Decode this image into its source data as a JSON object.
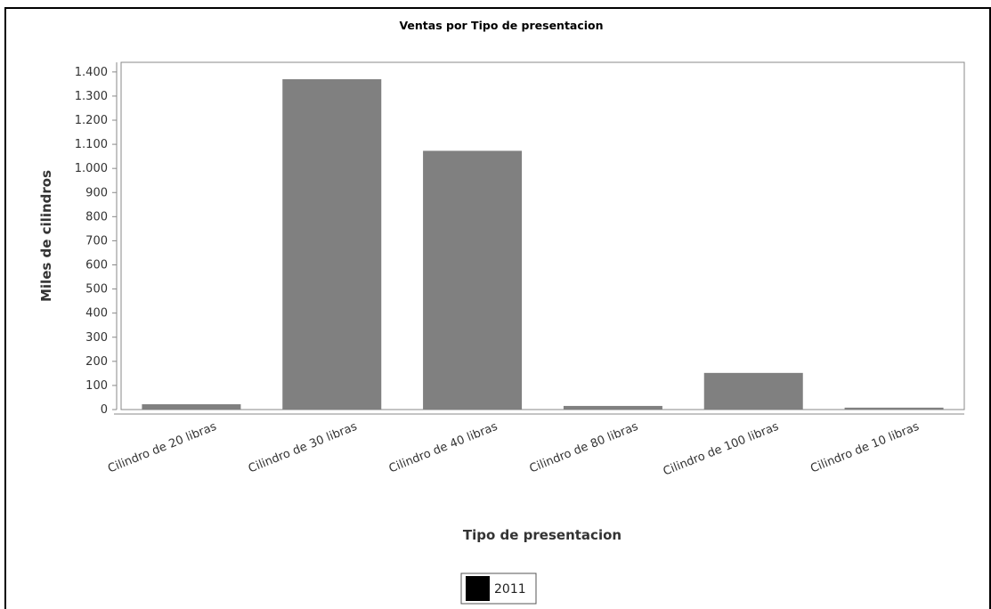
{
  "chart_data": {
    "type": "bar",
    "title": "Ventas por Tipo de presentacion",
    "xlabel": "Tipo de presentacion",
    "ylabel": "Miles de cilindros",
    "categories": [
      "Cilindro de 20 libras",
      "Cilindro de 30 libras",
      "Cilindro de 40 libras",
      "Cilindro de 80 libras",
      "Cilindro de 100 libras",
      "Cilindro de 10 libras"
    ],
    "series": [
      {
        "name": "2011",
        "values": [
          22,
          1370,
          1073,
          15,
          152,
          8
        ]
      }
    ],
    "ylim": [
      0,
      1440
    ],
    "yticks": [
      0,
      100,
      200,
      300,
      400,
      500,
      600,
      700,
      800,
      900,
      1000,
      1100,
      1200,
      1300,
      1400
    ],
    "ytick_labels": [
      "0",
      "100",
      "200",
      "300",
      "400",
      "500",
      "600",
      "700",
      "800",
      "900",
      "1.000",
      "1.100",
      "1.200",
      "1.300",
      "1.400"
    ],
    "grid": false,
    "legend": "bottom",
    "bar_color": "#808080",
    "legend_swatch_color": "#000000"
  }
}
